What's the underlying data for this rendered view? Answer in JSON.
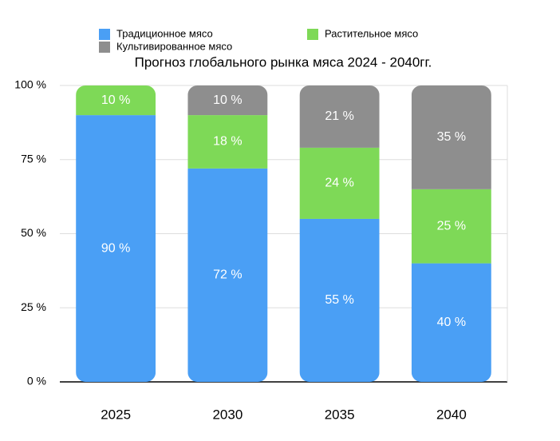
{
  "chart_data": {
    "type": "bar",
    "stacked": true,
    "title": "Прогноз глобального рынка мяса 2024 - 2040гг.",
    "categories": [
      "2025",
      "2030",
      "2035",
      "2040"
    ],
    "series": [
      {
        "name": "Традиционное мясо",
        "color": "#4a9ff5",
        "values": [
          90,
          72,
          55,
          40
        ],
        "value_labels": [
          "90 %",
          "72 %",
          "55 %",
          "40 %"
        ]
      },
      {
        "name": "Растительное мясо",
        "color": "#7ed957",
        "values": [
          10,
          18,
          24,
          25
        ],
        "value_labels": [
          "10 %",
          "18 %",
          "24 %",
          "25 %"
        ]
      },
      {
        "name": "Культивированное мясо",
        "color": "#8e8e8e",
        "values": [
          0,
          10,
          21,
          35
        ],
        "value_labels": [
          null,
          "10 %",
          "21 %",
          "35 %"
        ]
      }
    ],
    "ylim": [
      0,
      100
    ],
    "yticks": [
      {
        "value": 0,
        "label": "0 %"
      },
      {
        "value": 25,
        "label": "25 %"
      },
      {
        "value": 50,
        "label": "50 %"
      },
      {
        "value": 75,
        "label": "75 %"
      },
      {
        "value": 100,
        "label": "100 %"
      }
    ],
    "grid": true
  }
}
